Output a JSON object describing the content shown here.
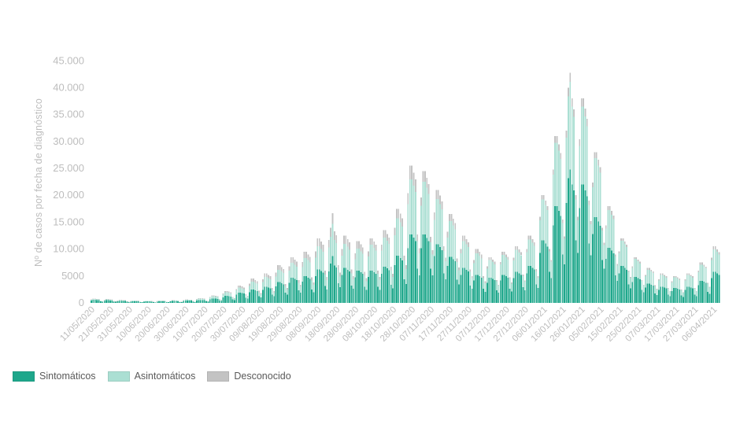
{
  "page": {
    "background": "#ffffff"
  },
  "colors": {
    "axis_text": "#bdbdbd",
    "legend_text": "#595959"
  },
  "chart_data": {
    "type": "bar",
    "stacked": true,
    "title": "",
    "xlabel": "",
    "ylabel": "Nº de casos por fecha de diagnóstico",
    "ylim": [
      0,
      45000
    ],
    "grid": false,
    "legend_position": "bottom-left",
    "start_date": "11/05/2020",
    "end_date": "09/04/2021",
    "x_tick_every": 10,
    "x_tick_labels": [
      "11/05/2020",
      "21/05/2020",
      "31/05/2020",
      "10/06/2020",
      "20/06/2020",
      "30/06/2020",
      "10/07/2020",
      "20/07/2020",
      "30/07/2020",
      "09/08/2020",
      "19/08/2020",
      "29/08/2020",
      "08/09/2020",
      "18/09/2020",
      "28/09/2020",
      "08/10/2020",
      "18/10/2020",
      "28/10/2020",
      "07/11/2020",
      "17/11/2020",
      "27/11/2020",
      "07/12/2020",
      "17/12/2020",
      "27/12/2020",
      "06/01/2021",
      "16/01/2021",
      "26/01/2021",
      "05/02/2021",
      "15/02/2021",
      "25/02/2021",
      "07/03/2021",
      "17/03/2021",
      "27/03/2021",
      "06/04/2021"
    ],
    "y_ticks": [
      {
        "value": 0,
        "label": "0"
      },
      {
        "value": 5000,
        "label": "5000"
      },
      {
        "value": 10000,
        "label": "10.000"
      },
      {
        "value": 15000,
        "label": "15.000"
      },
      {
        "value": 20000,
        "label": "20.000"
      },
      {
        "value": 25000,
        "label": "25.000"
      },
      {
        "value": 30000,
        "label": "30.000"
      },
      {
        "value": 35000,
        "label": "35.000"
      },
      {
        "value": 40000,
        "label": "40.000"
      },
      {
        "value": 45000,
        "label": "45.000"
      }
    ],
    "series": [
      {
        "name": "Sintomáticos",
        "color": "#1ea78b",
        "values": [
          450,
          560,
          560,
          530,
          505,
          280,
          225,
          390,
          490,
          490,
          465,
          440,
          245,
          195,
          310,
          385,
          385,
          365,
          345,
          195,
          155,
          250,
          315,
          315,
          300,
          285,
          160,
          125,
          225,
          280,
          280,
          265,
          250,
          140,
          110,
          250,
          315,
          315,
          300,
          285,
          160,
          125,
          280,
          350,
          350,
          330,
          315,
          175,
          140,
          365,
          455,
          455,
          430,
          410,
          230,
          180,
          430,
          540,
          540,
          515,
          485,
          270,
          215,
          670,
          840,
          840,
          800,
          755,
          420,
          335,
          1055,
          1320,
          1320,
          1255,
          1190,
          660,
          530,
          1535,
          1920,
          1920,
          1825,
          1730,
          960,
          770,
          1980,
          2475,
          2475,
          2350,
          2230,
          1240,
          990,
          2420,
          3025,
          3025,
          2875,
          2720,
          1510,
          1210,
          3080,
          3850,
          3850,
          3660,
          3465,
          1925,
          1540,
          3740,
          4675,
          4675,
          4440,
          4210,
          2340,
          1870,
          3950,
          4940,
          4940,
          4695,
          4445,
          2470,
          1975,
          4990,
          6240,
          6240,
          5930,
          5615,
          3120,
          2495,
          5825,
          7280,
          8680,
          6915,
          6550,
          3640,
          2910,
          5200,
          6500,
          6500,
          6175,
          5850,
          3250,
          2600,
          4785,
          5980,
          5980,
          5680,
          5380,
          2990,
          2390,
          4800,
          6000,
          6000,
          5700,
          5400,
          3000,
          2400,
          5400,
          6750,
          6750,
          6410,
          6075,
          3375,
          2700,
          7000,
          8750,
          8750,
          8310,
          7875,
          4375,
          3500,
          10200,
          12750,
          12750,
          12110,
          11475,
          6375,
          5100,
          10190,
          12740,
          12740,
          12100,
          11465,
          6370,
          5095,
          8735,
          10920,
          10920,
          10375,
          9830,
          5460,
          4370,
          6865,
          8580,
          8580,
          8150,
          7720,
          4290,
          3430,
          5200,
          6500,
          6500,
          6175,
          5850,
          3250,
          2600,
          4160,
          5200,
          5200,
          4940,
          4680,
          2600,
          2080,
          3740,
          4675,
          4675,
          4440,
          4210,
          2340,
          1870,
          4180,
          5225,
          5225,
          4965,
          4700,
          2610,
          2090,
          4620,
          5775,
          5775,
          5485,
          5200,
          2890,
          2310,
          5500,
          6875,
          6875,
          6530,
          6190,
          3440,
          2750,
          9280,
          11600,
          11600,
          11020,
          10440,
          5800,
          4640,
          14385,
          17980,
          17980,
          17080,
          16180,
          8990,
          7190,
          18560,
          23200,
          24820,
          22040,
          20880,
          11600,
          9280,
          17630,
          22040,
          22040,
          20940,
          19835,
          11020,
          8815,
          12770,
          15960,
          15960,
          15160,
          14365,
          7980,
          6385,
          8210,
          10260,
          10260,
          9745,
          9235,
          5130,
          4105,
          5470,
          6840,
          6840,
          6500,
          6155,
          3420,
          2735,
          3875,
          4845,
          4845,
          4605,
          4360,
          2420,
          1940,
          2860,
          3575,
          3575,
          3395,
          3215,
          1790,
          1430,
          2420,
          3025,
          3025,
          2875,
          2720,
          1510,
          1210,
          2200,
          2750,
          2750,
          2610,
          2475,
          1375,
          1100,
          2420,
          3025,
          3025,
          2875,
          2720,
          1510,
          1210,
          3300,
          4125,
          4125,
          3920,
          3710,
          2065,
          1650,
          4620,
          5775,
          5775,
          5485,
          5200
        ]
      },
      {
        "name": "Asintomáticos",
        "color": "#abdfd3",
        "values": [
          130,
          160,
          160,
          150,
          145,
          80,
          65,
          110,
          140,
          140,
          135,
          125,
          70,
          55,
          90,
          110,
          110,
          105,
          100,
          55,
          45,
          70,
          90,
          90,
          85,
          80,
          45,
          35,
          65,
          80,
          80,
          75,
          70,
          40,
          30,
          70,
          90,
          90,
          85,
          80,
          45,
          35,
          80,
          100,
          100,
          95,
          90,
          50,
          40,
          105,
          130,
          130,
          125,
          115,
          65,
          50,
          215,
          270,
          270,
          255,
          245,
          135,
          110,
          335,
          420,
          420,
          400,
          380,
          210,
          170,
          530,
          660,
          660,
          625,
          595,
          330,
          265,
          770,
          960,
          960,
          910,
          865,
          480,
          385,
          1190,
          1485,
          1485,
          1410,
          1335,
          740,
          595,
          1450,
          1815,
          1815,
          1725,
          1635,
          910,
          725,
          1850,
          2310,
          2310,
          2195,
          2080,
          1155,
          925,
          2245,
          2805,
          2805,
          2665,
          2525,
          1400,
          1120,
          2735,
          3420,
          3420,
          3250,
          3080,
          1710,
          1370,
          3455,
          4320,
          4320,
          4105,
          3890,
          2160,
          1730,
          4485,
          5040,
          6010,
          4790,
          4535,
          2520,
          2015,
          3600,
          4500,
          4500,
          4275,
          4050,
          2250,
          1800,
          3310,
          4140,
          4140,
          3935,
          3725,
          2070,
          1655,
          3840,
          4800,
          4800,
          4560,
          4320,
          2400,
          1920,
          4320,
          5400,
          5400,
          5130,
          4860,
          2700,
          2160,
          5600,
          7000,
          7000,
          6650,
          6300,
          3500,
          2800,
          8160,
          10200,
          10200,
          9690,
          9180,
          5100,
          4080,
          7840,
          9800,
          9800,
          9310,
          8820,
          4900,
          3920,
          6720,
          8400,
          8400,
          7980,
          7560,
          4200,
          3360,
          5280,
          6600,
          6600,
          6270,
          5940,
          3300,
          2640,
          4000,
          5000,
          5000,
          4750,
          4500,
          2500,
          2000,
          3200,
          4000,
          4000,
          3800,
          3600,
          2000,
          1600,
          2650,
          3315,
          3315,
          3150,
          2985,
          1660,
          1325,
          2965,
          3705,
          3705,
          3520,
          3335,
          1855,
          1480,
          3275,
          4095,
          4095,
          3890,
          3685,
          2050,
          1640,
          3900,
          4875,
          4875,
          4630,
          4390,
          2440,
          1950,
          6080,
          7600,
          7600,
          7220,
          6840,
          3800,
          3040,
          9425,
          11780,
          11780,
          11190,
          10600,
          5890,
          4710,
          12160,
          15200,
          16260,
          14440,
          13680,
          7600,
          6080,
          11550,
          14440,
          14440,
          13720,
          12995,
          7220,
          5775,
          8735,
          10920,
          10920,
          10375,
          9830,
          5460,
          4370,
          5615,
          7020,
          7020,
          6670,
          6320,
          3510,
          2810,
          3745,
          4680,
          4680,
          4445,
          4210,
          2340,
          1870,
          2650,
          3315,
          3315,
          3150,
          2985,
          1660,
          1325,
          2080,
          2600,
          2600,
          2470,
          2340,
          1300,
          1040,
          1760,
          2200,
          2200,
          2090,
          1980,
          1100,
          880,
          1600,
          2000,
          2000,
          1900,
          1800,
          1000,
          800,
          1760,
          2200,
          2200,
          2090,
          1980,
          1100,
          880,
          2400,
          3000,
          3000,
          2850,
          2700,
          1500,
          1200,
          3360,
          4200,
          4200,
          3990,
          3780
        ]
      },
      {
        "name": "Desconocido",
        "color": "#c3c3c3",
        "values": [
          65,
          80,
          80,
          75,
          70,
          40,
          30,
          55,
          70,
          70,
          65,
          65,
          35,
          30,
          45,
          55,
          55,
          50,
          50,
          30,
          20,
          35,
          45,
          45,
          45,
          40,
          25,
          20,
          30,
          40,
          40,
          40,
          35,
          20,
          15,
          35,
          45,
          45,
          45,
          40,
          25,
          20,
          40,
          50,
          50,
          50,
          45,
          25,
          20,
          50,
          65,
          65,
          60,
          60,
          35,
          25,
          70,
          90,
          90,
          85,
          80,
          45,
          35,
          110,
          140,
          140,
          135,
          125,
          70,
          55,
          175,
          220,
          220,
          210,
          200,
          110,
          90,
          255,
          320,
          320,
          305,
          290,
          160,
          130,
          430,
          540,
          540,
          515,
          485,
          270,
          215,
          530,
          660,
          660,
          625,
          595,
          330,
          265,
          670,
          840,
          840,
          800,
          755,
          420,
          335,
          815,
          1020,
          1020,
          970,
          920,
          510,
          410,
          910,
          1140,
          1140,
          1085,
          1025,
          570,
          455,
          1150,
          1440,
          1440,
          1370,
          1295,
          720,
          575,
          1390,
          1680,
          2010,
          1595,
          1510,
          840,
          670,
          1200,
          1500,
          1500,
          1425,
          1350,
          750,
          600,
          1105,
          1380,
          1380,
          1310,
          1240,
          690,
          550,
          960,
          1200,
          1200,
          1140,
          1080,
          600,
          480,
          1080,
          1350,
          1350,
          1280,
          1215,
          675,
          540,
          1400,
          1750,
          1750,
          1665,
          1575,
          875,
          700,
          2040,
          2550,
          2550,
          2420,
          2295,
          1275,
          1020,
          1570,
          1960,
          1960,
          1860,
          1765,
          980,
          785,
          1345,
          1680,
          1680,
          1595,
          1510,
          840,
          670,
          1055,
          1320,
          1320,
          1255,
          1190,
          660,
          530,
          800,
          1000,
          1000,
          950,
          900,
          500,
          400,
          640,
          800,
          800,
          760,
          720,
          400,
          320,
          410,
          510,
          510,
          485,
          460,
          255,
          205,
          455,
          570,
          570,
          540,
          515,
          285,
          230,
          505,
          630,
          630,
          600,
          565,
          315,
          250,
          600,
          750,
          750,
          715,
          675,
          375,
          300,
          640,
          800,
          800,
          760,
          720,
          400,
          320,
          990,
          1240,
          1240,
          1180,
          1115,
          620,
          495,
          1280,
          1600,
          1710,
          1520,
          1440,
          800,
          640,
          1215,
          1520,
          1520,
          1445,
          1370,
          760,
          610,
          895,
          1120,
          1120,
          1065,
          1010,
          560,
          450,
          575,
          720,
          720,
          685,
          650,
          360,
          290,
          385,
          480,
          480,
          455,
          430,
          240,
          190,
          270,
          340,
          340,
          325,
          305,
          170,
          135,
          260,
          325,
          325,
          310,
          290,
          165,
          130,
          220,
          275,
          275,
          260,
          250,
          140,
          110,
          200,
          250,
          250,
          240,
          225,
          125,
          100,
          220,
          275,
          275,
          260,
          250,
          140,
          110,
          300,
          375,
          375,
          355,
          340,
          190,
          150,
          420,
          525,
          525,
          500,
          470
        ]
      }
    ]
  }
}
